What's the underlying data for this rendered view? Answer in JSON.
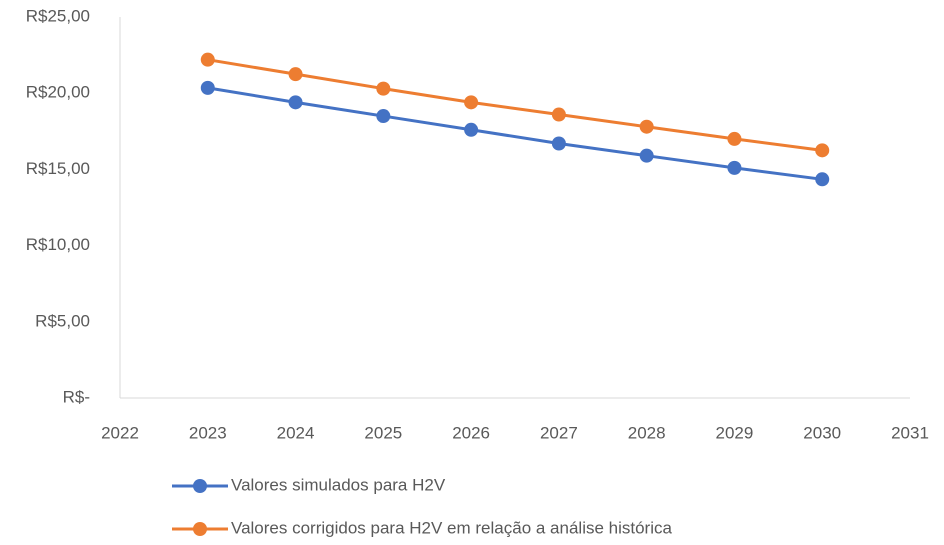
{
  "chart_data": {
    "type": "line",
    "x": [
      2023,
      2024,
      2025,
      2026,
      2027,
      2028,
      2029,
      2030
    ],
    "series": [
      {
        "name": "Valores simulados para H2V",
        "color": "#4472c4",
        "values": [
          20.35,
          19.4,
          18.5,
          17.6,
          16.7,
          15.9,
          15.1,
          14.35
        ]
      },
      {
        "name": "Valores corrigidos para H2V em relação a análise histórica",
        "color": "#ed7d31",
        "values": [
          22.2,
          21.25,
          20.3,
          19.4,
          18.6,
          17.8,
          17.0,
          16.25
        ]
      }
    ],
    "xlim": [
      2022,
      2031
    ],
    "xticks": [
      2022,
      2023,
      2024,
      2025,
      2026,
      2027,
      2028,
      2029,
      2030,
      2031
    ],
    "ylim": [
      0,
      25
    ],
    "yticks": [
      {
        "value": 0,
        "label": "R$-"
      },
      {
        "value": 5,
        "label": "R$5,00"
      },
      {
        "value": 10,
        "label": "R$10,00"
      },
      {
        "value": 15,
        "label": "R$15,00"
      },
      {
        "value": 20,
        "label": "R$20,00"
      },
      {
        "value": 25,
        "label": "R$25,00"
      }
    ],
    "grid": false,
    "legend": "bottom"
  }
}
